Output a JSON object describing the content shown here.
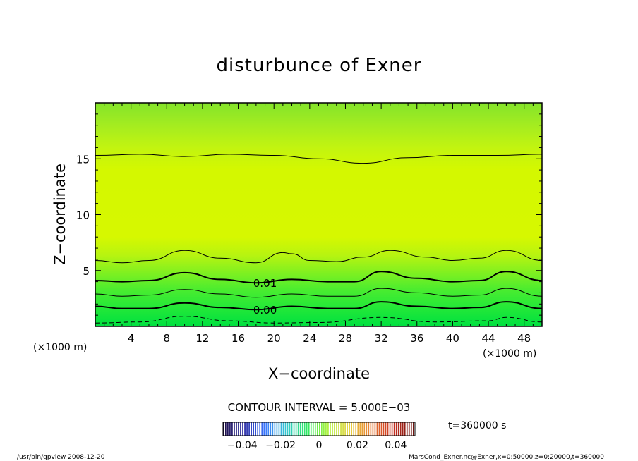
{
  "chart_data": {
    "type": "contour",
    "title": "disturbunce of Exner",
    "xlabel": "X−coordinate",
    "ylabel": "Z−coordinate",
    "x_unit_left": "(×1000 m)",
    "x_unit_right": "(×1000 m)",
    "xlim": [
      0,
      50
    ],
    "ylim": [
      0,
      20
    ],
    "x_ticks": [
      "4",
      "8",
      "12",
      "16",
      "20",
      "24",
      "28",
      "32",
      "36",
      "40",
      "44",
      "48"
    ],
    "y_ticks": [
      "5",
      "10",
      "15"
    ],
    "contour_interval_text": "CONTOUR INTERVAL = 5.000E−03",
    "contours": [
      {
        "level": -0.005,
        "style": "dashed",
        "label": "",
        "points": [
          [
            0,
            0.3
          ],
          [
            5,
            0.4
          ],
          [
            10,
            0.9
          ],
          [
            15,
            0.5
          ],
          [
            20,
            0.3
          ],
          [
            25,
            0.35
          ],
          [
            32,
            0.8
          ],
          [
            38,
            0.4
          ],
          [
            44,
            0.5
          ],
          [
            46,
            0.8
          ],
          [
            50,
            0.4
          ]
        ]
      },
      {
        "level": 0.0,
        "style": "bold",
        "label": "0.00",
        "points": [
          [
            0,
            1.8
          ],
          [
            3,
            1.6
          ],
          [
            6,
            1.6
          ],
          [
            10,
            2.1
          ],
          [
            14,
            1.7
          ],
          [
            18,
            1.5
          ],
          [
            22,
            1.8
          ],
          [
            26,
            1.6
          ],
          [
            29,
            1.6
          ],
          [
            32,
            2.2
          ],
          [
            36,
            1.8
          ],
          [
            40,
            1.6
          ],
          [
            43,
            1.7
          ],
          [
            46,
            2.2
          ],
          [
            50,
            1.6
          ]
        ]
      },
      {
        "level": 0.005,
        "style": "thin",
        "label": "",
        "points": [
          [
            0,
            2.9
          ],
          [
            3,
            2.7
          ],
          [
            6,
            2.8
          ],
          [
            10,
            3.3
          ],
          [
            14,
            2.9
          ],
          [
            18,
            2.6
          ],
          [
            22,
            2.9
          ],
          [
            26,
            2.7
          ],
          [
            29,
            2.7
          ],
          [
            32,
            3.4
          ],
          [
            36,
            3.0
          ],
          [
            40,
            2.7
          ],
          [
            43,
            2.8
          ],
          [
            46,
            3.4
          ],
          [
            50,
            2.7
          ]
        ]
      },
      {
        "level": 0.01,
        "style": "bold",
        "label": "0.01",
        "points": [
          [
            0,
            4.1
          ],
          [
            3,
            4.0
          ],
          [
            6,
            4.1
          ],
          [
            10,
            4.8
          ],
          [
            14,
            4.2
          ],
          [
            18,
            3.9
          ],
          [
            22,
            4.2
          ],
          [
            26,
            4.0
          ],
          [
            29,
            4.0
          ],
          [
            32,
            4.9
          ],
          [
            36,
            4.3
          ],
          [
            40,
            4.0
          ],
          [
            43,
            4.1
          ],
          [
            46,
            4.9
          ],
          [
            50,
            4.1
          ]
        ]
      },
      {
        "level": 0.015,
        "style": "thin",
        "label": "",
        "points": [
          [
            0,
            5.9
          ],
          [
            3,
            5.7
          ],
          [
            6,
            5.9
          ],
          [
            10,
            6.8
          ],
          [
            14,
            6.1
          ],
          [
            18,
            5.7
          ],
          [
            21,
            6.6
          ],
          [
            22,
            6.5
          ],
          [
            24,
            5.9
          ],
          [
            27,
            5.8
          ],
          [
            30,
            6.2
          ],
          [
            33,
            6.8
          ],
          [
            37,
            6.2
          ],
          [
            40,
            5.9
          ],
          [
            43,
            6.1
          ],
          [
            46,
            6.8
          ],
          [
            50,
            5.9
          ]
        ]
      },
      {
        "level": 0.02,
        "style": "thin",
        "label": "",
        "points": [
          [
            0,
            15.3
          ],
          [
            5,
            15.4
          ],
          [
            10,
            15.2
          ],
          [
            15,
            15.4
          ],
          [
            20,
            15.3
          ],
          [
            25,
            15.0
          ],
          [
            30,
            14.6
          ],
          [
            35,
            15.1
          ],
          [
            40,
            15.3
          ],
          [
            45,
            15.3
          ],
          [
            50,
            15.4
          ]
        ]
      }
    ],
    "colorbar": {
      "ticks": [
        "−0.04",
        "−0.02",
        "0",
        "0.02",
        "0.04"
      ],
      "range": [
        -0.05,
        0.05
      ],
      "colors": [
        "#1a0a40",
        "#1e1e9e",
        "#3c78ff",
        "#35c8d0",
        "#30ea60",
        "#b0f030",
        "#e8d040",
        "#e87830",
        "#c83020",
        "#6a1410"
      ]
    },
    "colors": {
      "low": "#00e844",
      "mid": "#7bf020",
      "high": "#d8f800"
    }
  },
  "annotations": {
    "time_label": "t=360000 s",
    "footer_left": "/usr/bin/gpview   2008-12-20",
    "footer_right": "MarsCond_Exner.nc@Exner,x=0:50000,z=0:20000,t=360000"
  }
}
